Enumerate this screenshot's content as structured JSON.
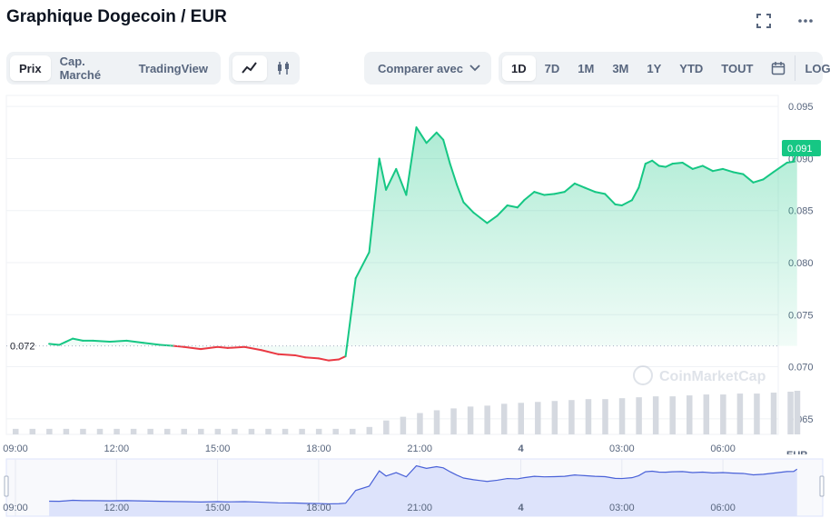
{
  "header": {
    "title": "Graphique Dogecoin / EUR"
  },
  "toolbar": {
    "view_tabs": [
      "Prix",
      "Cap. Marché",
      "TradingView"
    ],
    "compare_label": "Comparer avec",
    "ranges": [
      "1D",
      "7D",
      "1M",
      "3M",
      "1Y",
      "YTD",
      "TOUT"
    ],
    "log_label": "LOG"
  },
  "colors": {
    "up": "#16c784",
    "down": "#ea3943",
    "volume": "#d5d9e0",
    "navigator_fill": "#dde3fb",
    "navigator_line": "#4a62d8"
  },
  "chart_data": {
    "type": "line",
    "title": "Graphique Dogecoin / EUR",
    "ylabel": "EUR",
    "ylim": [
      0.0635,
      0.0965
    ],
    "y_ticks": [
      "0.065",
      "0.070",
      "0.075",
      "0.080",
      "0.085",
      "0.090",
      "0.095"
    ],
    "x_ticks": [
      "09:00",
      "12:00",
      "15:00",
      "18:00",
      "21:00",
      "4",
      "03:00",
      "06:00"
    ],
    "x_tick_hours": [
      0,
      3,
      6,
      9,
      12,
      15,
      18,
      21
    ],
    "reference_value": 0.072,
    "reference_label": "0.072",
    "current_value": 0.091,
    "current_label": "0.091",
    "watermark": "CoinMarketCap",
    "series": [
      {
        "x": [
          1.0,
          1.3,
          1.5,
          1.7,
          2.0,
          2.3,
          2.8,
          3.3,
          3.8,
          4.3,
          4.7,
          5.0,
          5.5,
          6.0,
          6.3,
          6.8,
          7.3,
          7.8,
          8.3,
          8.6,
          9.0,
          9.3,
          9.6,
          9.8,
          10.1,
          10.5,
          10.8,
          11.0,
          11.3,
          11.6,
          11.9,
          12.2,
          12.5,
          12.7,
          12.9,
          13.1,
          13.3,
          13.6,
          13.8,
          14.0,
          14.3,
          14.6,
          14.9,
          15.1,
          15.4,
          15.7,
          16.0,
          16.3,
          16.6,
          16.9,
          17.2,
          17.5,
          17.8,
          18.0,
          18.3,
          18.5,
          18.7,
          18.9,
          19.1,
          19.3,
          19.5,
          19.8,
          20.1,
          20.4,
          20.7,
          21.0,
          21.3,
          21.6,
          21.9,
          22.2,
          22.5,
          22.9,
          23.1,
          23.2
        ],
        "values": [
          0.0722,
          0.0721,
          0.0724,
          0.0727,
          0.0725,
          0.0725,
          0.0724,
          0.0725,
          0.0723,
          0.0721,
          0.072,
          0.0719,
          0.0717,
          0.0719,
          0.0718,
          0.0719,
          0.0716,
          0.0712,
          0.0711,
          0.0709,
          0.0708,
          0.0706,
          0.0707,
          0.071,
          0.0785,
          0.081,
          0.09,
          0.087,
          0.089,
          0.0865,
          0.093,
          0.0915,
          0.0925,
          0.0918,
          0.0895,
          0.0875,
          0.0858,
          0.0848,
          0.0843,
          0.0838,
          0.0845,
          0.0855,
          0.0853,
          0.086,
          0.0868,
          0.0865,
          0.0866,
          0.0868,
          0.0876,
          0.0872,
          0.0868,
          0.0866,
          0.0856,
          0.0855,
          0.086,
          0.0872,
          0.0895,
          0.0898,
          0.0893,
          0.0892,
          0.0895,
          0.0896,
          0.089,
          0.0893,
          0.0888,
          0.089,
          0.0887,
          0.0885,
          0.0877,
          0.088,
          0.0887,
          0.0896,
          0.0897,
          0.091
        ]
      }
    ],
    "volume": {
      "x": [
        0.0,
        0.5,
        1.0,
        1.5,
        2.0,
        2.5,
        3.0,
        3.5,
        4.0,
        4.5,
        5.0,
        5.5,
        6.0,
        6.5,
        7.0,
        7.5,
        8.0,
        8.5,
        9.0,
        9.5,
        10.0,
        10.5,
        11.0,
        11.5,
        12.0,
        12.5,
        13.0,
        13.5,
        14.0,
        14.5,
        15.0,
        15.5,
        16.0,
        16.5,
        17.0,
        17.5,
        18.0,
        18.5,
        19.0,
        19.5,
        20.0,
        20.5,
        21.0,
        21.5,
        22.0,
        22.5,
        23.0,
        23.2
      ],
      "values": [
        6,
        6,
        6,
        6,
        6,
        6,
        6,
        6,
        6,
        6,
        6,
        6,
        6,
        6,
        6,
        6,
        6,
        6,
        6,
        6,
        6,
        8,
        15,
        19,
        23,
        26,
        28,
        30,
        31,
        33,
        34,
        35,
        36,
        37,
        38,
        38,
        39,
        40,
        41,
        41,
        42,
        43,
        43,
        44,
        44,
        45,
        46,
        47
      ]
    },
    "navigator": {
      "x_ticks": [
        "09:00",
        "12:00",
        "15:00",
        "18:00",
        "21:00",
        "4",
        "03:00",
        "06:00"
      ]
    }
  }
}
